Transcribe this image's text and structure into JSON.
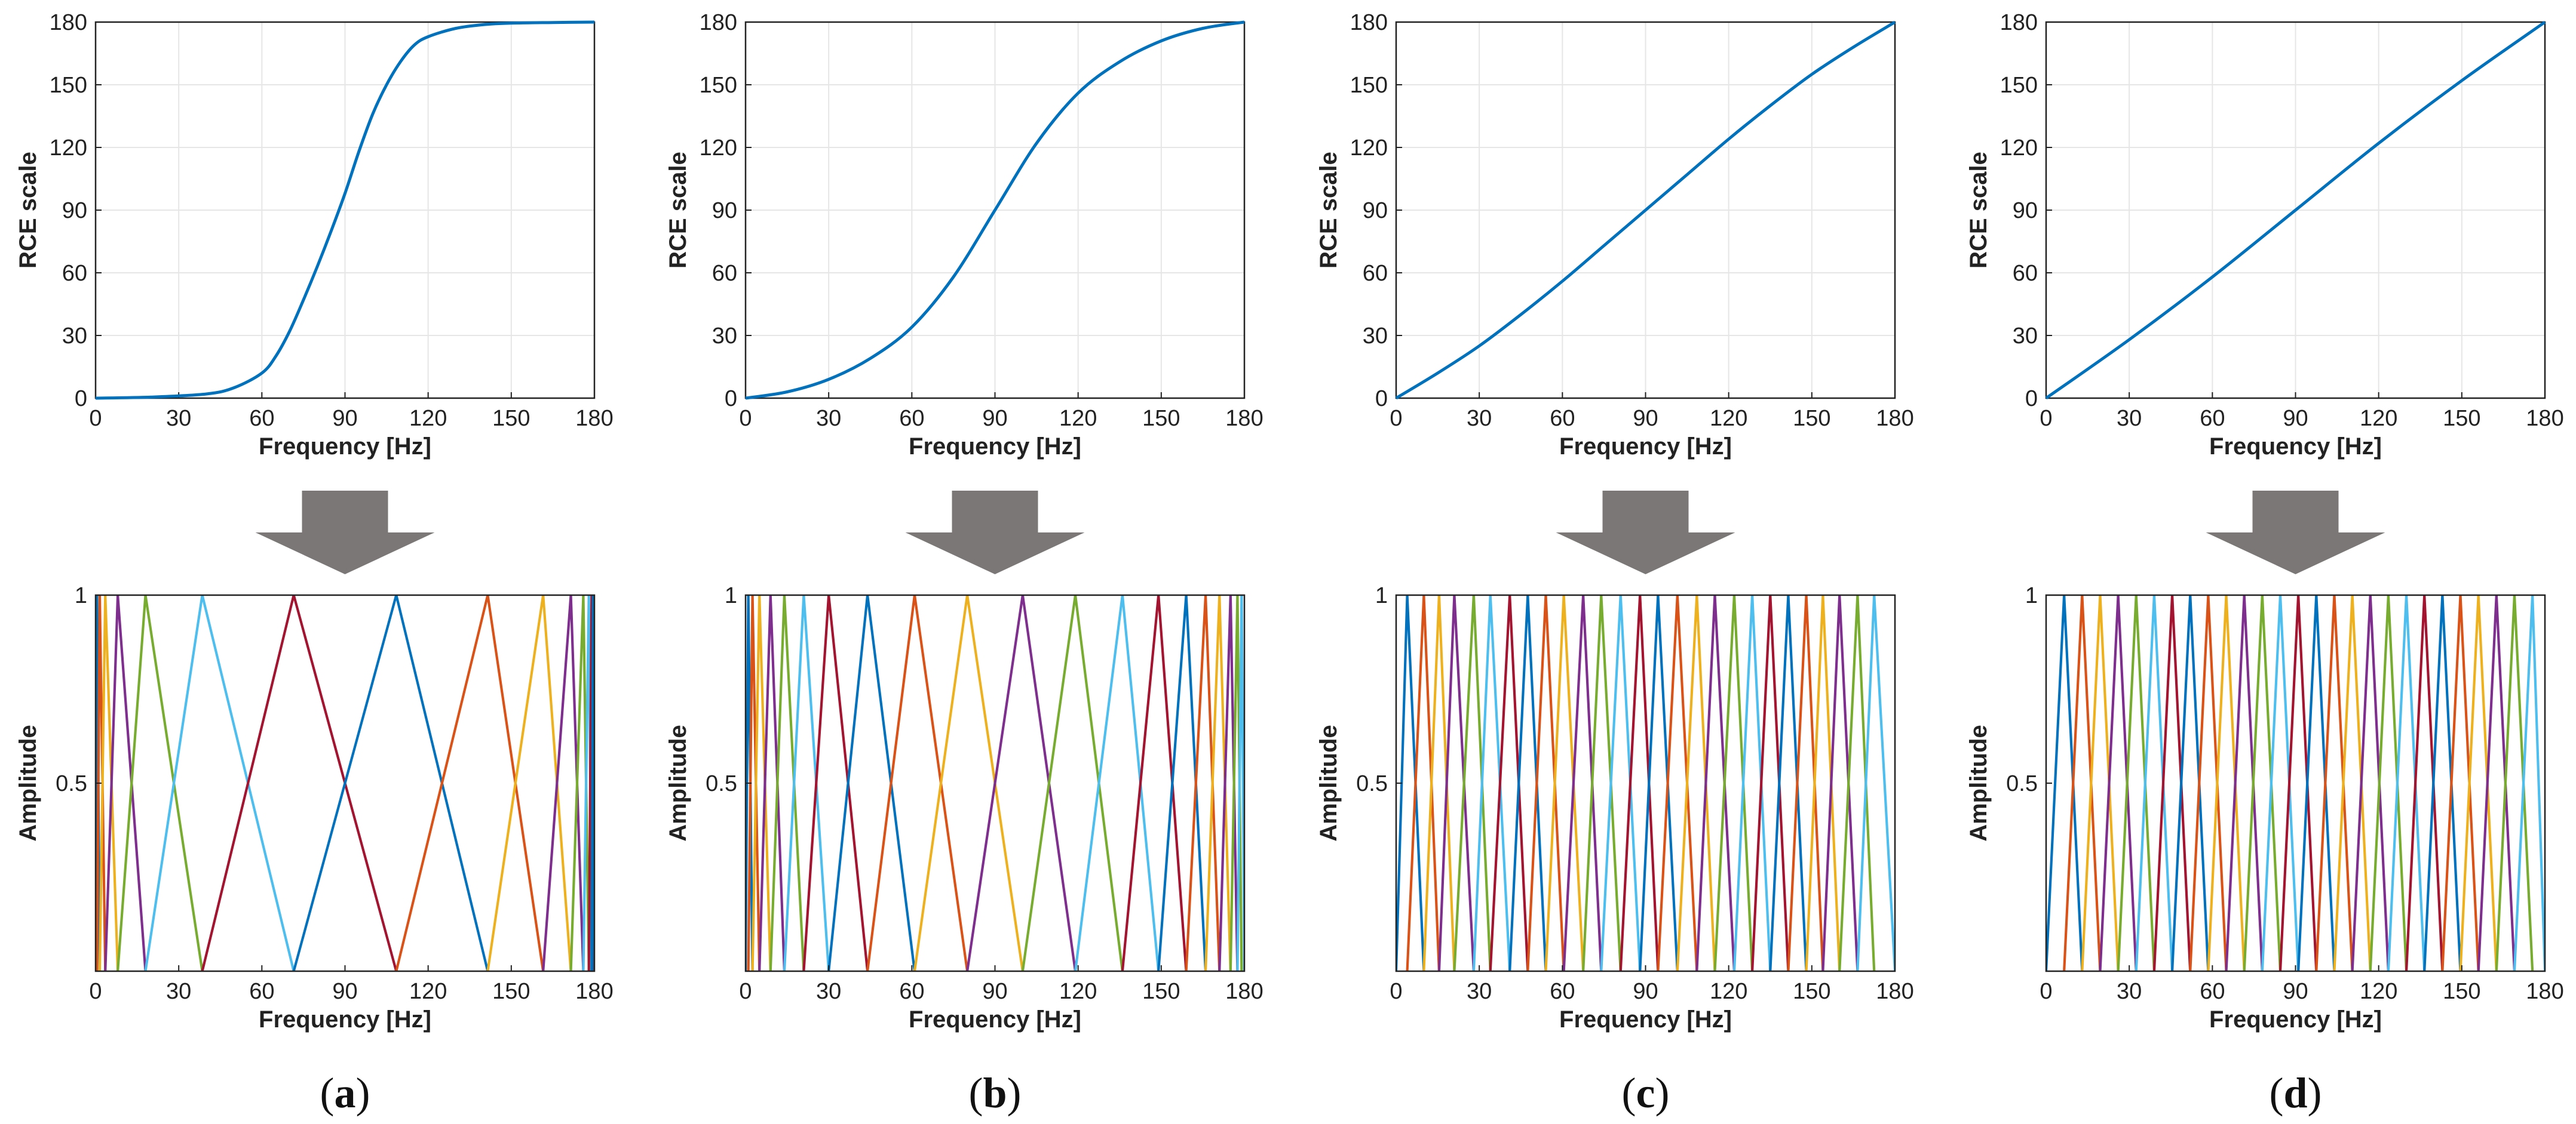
{
  "chart_data": [
    {
      "panel": "a",
      "type": "line",
      "title": "",
      "xlabel": "Frequency [Hz]",
      "ylabel": "RCE scale",
      "xlim": [
        0,
        180
      ],
      "ylim": [
        0,
        180
      ],
      "xticks": [
        0,
        30,
        60,
        90,
        120,
        150,
        180
      ],
      "yticks": [
        0,
        30,
        60,
        90,
        120,
        150,
        180
      ],
      "grid": true,
      "series": [
        {
          "name": "RCE scale",
          "color": "#0072BD",
          "x": [
            0,
            20,
            40,
            50,
            60,
            65,
            70,
            75,
            80,
            85,
            90,
            95,
            100,
            105,
            110,
            115,
            120,
            130,
            140,
            150,
            165,
            180
          ],
          "y": [
            0,
            0.5,
            2,
            5,
            12,
            20,
            32,
            47,
            63,
            80,
            98,
            118,
            136,
            150,
            161,
            169,
            173,
            177,
            178.8,
            179.5,
            179.8,
            180
          ]
        }
      ]
    },
    {
      "panel": "b",
      "type": "line",
      "title": "",
      "xlabel": "Frequency [Hz]",
      "ylabel": "RCE scale",
      "xlim": [
        0,
        180
      ],
      "ylim": [
        0,
        180
      ],
      "xticks": [
        0,
        30,
        60,
        90,
        120,
        150,
        180
      ],
      "yticks": [
        0,
        30,
        60,
        90,
        120,
        150,
        180
      ],
      "grid": true,
      "series": [
        {
          "name": "RCE scale",
          "color": "#0072BD",
          "x": [
            0,
            15,
            30,
            45,
            60,
            75,
            90,
            105,
            120,
            135,
            150,
            165,
            180
          ],
          "y": [
            0,
            3,
            9,
            19,
            34,
            58,
            90,
            122,
            146,
            161,
            171,
            177,
            180
          ]
        }
      ]
    },
    {
      "panel": "c",
      "type": "line",
      "title": "",
      "xlabel": "Frequency [Hz]",
      "ylabel": "RCE scale",
      "xlim": [
        0,
        180
      ],
      "ylim": [
        0,
        180
      ],
      "xticks": [
        0,
        30,
        60,
        90,
        120,
        150,
        180
      ],
      "yticks": [
        0,
        30,
        60,
        90,
        120,
        150,
        180
      ],
      "grid": true,
      "series": [
        {
          "name": "RCE scale",
          "color": "#0072BD",
          "x": [
            0,
            15,
            30,
            45,
            60,
            75,
            90,
            105,
            120,
            135,
            150,
            165,
            180
          ],
          "y": [
            0,
            12,
            25,
            40,
            56,
            73,
            90,
            107,
            124,
            140,
            155,
            168,
            180
          ]
        }
      ]
    },
    {
      "panel": "d",
      "type": "line",
      "title": "",
      "xlabel": "Frequency [Hz]",
      "ylabel": "RCE scale",
      "xlim": [
        0,
        180
      ],
      "ylim": [
        0,
        180
      ],
      "xticks": [
        0,
        30,
        60,
        90,
        120,
        150,
        180
      ],
      "yticks": [
        0,
        30,
        60,
        90,
        120,
        150,
        180
      ],
      "grid": true,
      "series": [
        {
          "name": "RCE scale",
          "color": "#0072BD",
          "x": [
            0,
            30,
            60,
            90,
            120,
            150,
            180
          ],
          "y": [
            0,
            28,
            58,
            90,
            122,
            152,
            180
          ]
        }
      ]
    },
    {
      "panel": "a",
      "type": "line",
      "subtype": "triangular filter bank",
      "title": "",
      "xlabel": "Frequency [Hz]",
      "ylabel": "Amplitude",
      "xlim": [
        0,
        180
      ],
      "ylim": [
        0,
        1
      ],
      "xticks": [
        0,
        30,
        60,
        90,
        120,
        150,
        180
      ],
      "yticks": [
        0.5,
        1
      ],
      "grid": false,
      "filter_centers": [
        0.5,
        1.5,
        3.5,
        8,
        18,
        38.5,
        71.5,
        108.5,
        141.5,
        161.5,
        171.5,
        176,
        178,
        179,
        179.5
      ]
    },
    {
      "panel": "b",
      "type": "line",
      "subtype": "triangular filter bank",
      "title": "",
      "xlabel": "Frequency [Hz]",
      "ylabel": "Amplitude",
      "xlim": [
        0,
        180
      ],
      "ylim": [
        0,
        1
      ],
      "xticks": [
        0,
        30,
        60,
        90,
        120,
        150,
        180
      ],
      "yticks": [
        0.5,
        1
      ],
      "grid": false,
      "filter_centers": [
        1,
        2.5,
        5,
        9,
        14,
        21,
        30,
        44,
        61,
        80,
        100,
        119,
        136,
        149,
        159,
        166,
        171,
        175,
        177.5,
        179
      ]
    },
    {
      "panel": "c",
      "type": "line",
      "subtype": "triangular filter bank",
      "title": "",
      "xlabel": "Frequency [Hz]",
      "ylabel": "Amplitude",
      "xlim": [
        0,
        180
      ],
      "ylim": [
        0,
        1
      ],
      "xticks": [
        0,
        30,
        60,
        90,
        120,
        150,
        180
      ],
      "yticks": [
        0.5,
        1
      ],
      "grid": false,
      "filter_centers": [
        4,
        10,
        15.5,
        21,
        28,
        34,
        41,
        47.5,
        54,
        60.5,
        67.5,
        74,
        81,
        88,
        94.5,
        101.5,
        108.5,
        115,
        122,
        128.5,
        135,
        141.5,
        148,
        154,
        160,
        166.5,
        172.5
      ]
    },
    {
      "panel": "d",
      "type": "line",
      "subtype": "triangular filter bank",
      "title": "",
      "xlabel": "Frequency [Hz]",
      "ylabel": "Amplitude",
      "xlim": [
        0,
        180
      ],
      "ylim": [
        0,
        1
      ],
      "xticks": [
        0,
        30,
        60,
        90,
        120,
        150,
        180
      ],
      "yticks": [
        0.5,
        1
      ],
      "grid": false,
      "filter_centers": [
        6.5,
        13,
        19.5,
        26,
        32.5,
        39,
        45.5,
        52,
        58.5,
        65,
        71.5,
        78,
        84.5,
        91,
        97.5,
        104,
        110.5,
        117,
        123.5,
        130,
        136.5,
        143,
        149.5,
        156,
        162.5,
        169,
        175.5
      ]
    }
  ],
  "panel_labels": [
    {
      "open": "(",
      "letter": "a",
      "close": ")"
    },
    {
      "open": "(",
      "letter": "b",
      "close": ")"
    },
    {
      "open": "(",
      "letter": "c",
      "close": ")"
    },
    {
      "open": "(",
      "letter": "d",
      "close": ")"
    }
  ],
  "colors": {
    "curve": "#0072BD",
    "filter_cycle": [
      "#0072BD",
      "#D95319",
      "#EDB120",
      "#7E2F8E",
      "#77AC30",
      "#4DBEEE",
      "#A2142F"
    ],
    "arrow": "#7a7776",
    "grid": "#e6e6e6",
    "axis": "#222222"
  },
  "arrow_icon": "down-arrow-icon"
}
